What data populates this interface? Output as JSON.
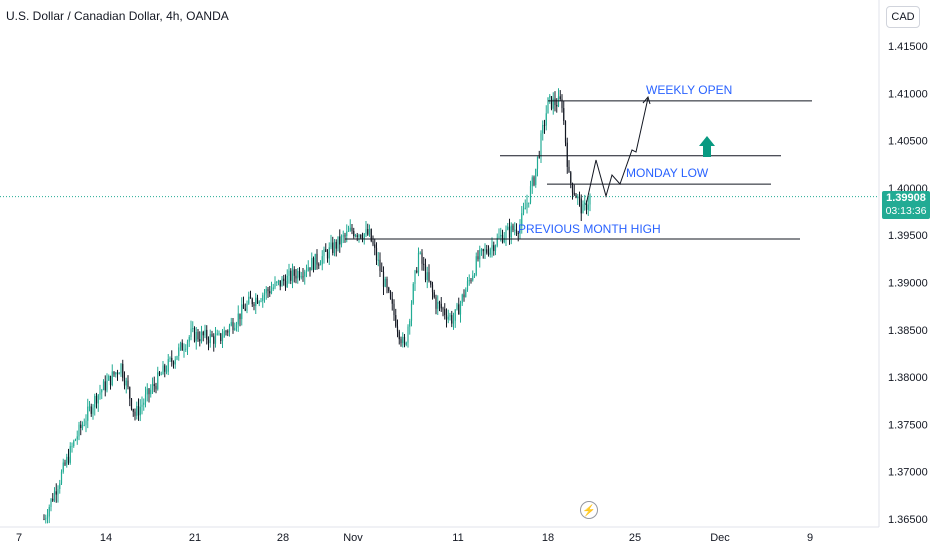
{
  "header": {
    "symbol_title": "U.S. Dollar / Canadian Dollar, 4h, OANDA",
    "currency": "CAD"
  },
  "last_price": {
    "price": "1.39908",
    "countdown": "03:13:36",
    "covered_tick": "1.40000"
  },
  "colors": {
    "up": "#22ab94",
    "down": "#131722",
    "annotation_text": "#2962ff",
    "arrow": "#089981",
    "axis_text": "#131722"
  },
  "icons": {
    "lightning": "lightning-icon",
    "up_arrow": "up-arrow-icon"
  },
  "chart_data": {
    "type": "candlestick",
    "title": "U.S. Dollar / Canadian Dollar, 4h, OANDA",
    "xlabel": "",
    "ylabel": "",
    "ylim": [
      1.3648,
      1.4185
    ],
    "y_ticks": [
      1.365,
      1.37,
      1.375,
      1.38,
      1.385,
      1.39,
      1.395,
      1.4,
      1.405,
      1.41,
      1.415
    ],
    "y_tick_labels": [
      "1.36500",
      "1.37000",
      "1.37500",
      "1.38000",
      "1.38500",
      "1.39000",
      "1.39500",
      "1.40000",
      "1.40500",
      "1.41000",
      "1.41500"
    ],
    "x_tick_labels": [
      "7",
      "14",
      "21",
      "28",
      "Nov",
      "11",
      "18",
      "25",
      "Dec",
      "9"
    ],
    "last_price": 1.39908,
    "path_points": [
      [
        0,
        1.365
      ],
      [
        18,
        1.3735
      ],
      [
        30,
        1.378
      ],
      [
        44,
        1.3812
      ],
      [
        52,
        1.376
      ],
      [
        66,
        1.38
      ],
      [
        84,
        1.3845
      ],
      [
        100,
        1.384
      ],
      [
        118,
        1.388
      ],
      [
        140,
        1.3905
      ],
      [
        160,
        1.3928
      ],
      [
        176,
        1.3955
      ],
      [
        186,
        1.395
      ],
      [
        196,
        1.389
      ],
      [
        206,
        1.383
      ],
      [
        214,
        1.393
      ],
      [
        224,
        1.3878
      ],
      [
        234,
        1.386
      ],
      [
        248,
        1.3925
      ],
      [
        262,
        1.395
      ],
      [
        272,
        1.396
      ],
      [
        280,
        1.401
      ],
      [
        288,
        1.409
      ],
      [
        296,
        1.409
      ],
      [
        300,
        1.401
      ],
      [
        308,
        1.3975
      ],
      [
        312,
        1.399
      ]
    ],
    "levels": [
      {
        "label": "WEEKLY OPEN",
        "price": 1.4092
      },
      {
        "label": "",
        "price": 1.4034
      },
      {
        "label": "MONDAY  LOW",
        "price": 1.4004
      },
      {
        "label": "PREVIOUS MONTH HIGH",
        "price": 1.3946
      }
    ],
    "projection_path": [
      [
        1.399,
        "start"
      ],
      [
        1.4035
      ],
      [
        1.4
      ],
      [
        1.401
      ],
      [
        1.3998
      ],
      [
        1.4035
      ],
      [
        1.404
      ],
      [
        1.4095
      ]
    ],
    "annotations": [
      "WEEKLY OPEN",
      "MONDAY  LOW",
      "PREVIOUS MONTH HIGH"
    ],
    "grid": false
  }
}
